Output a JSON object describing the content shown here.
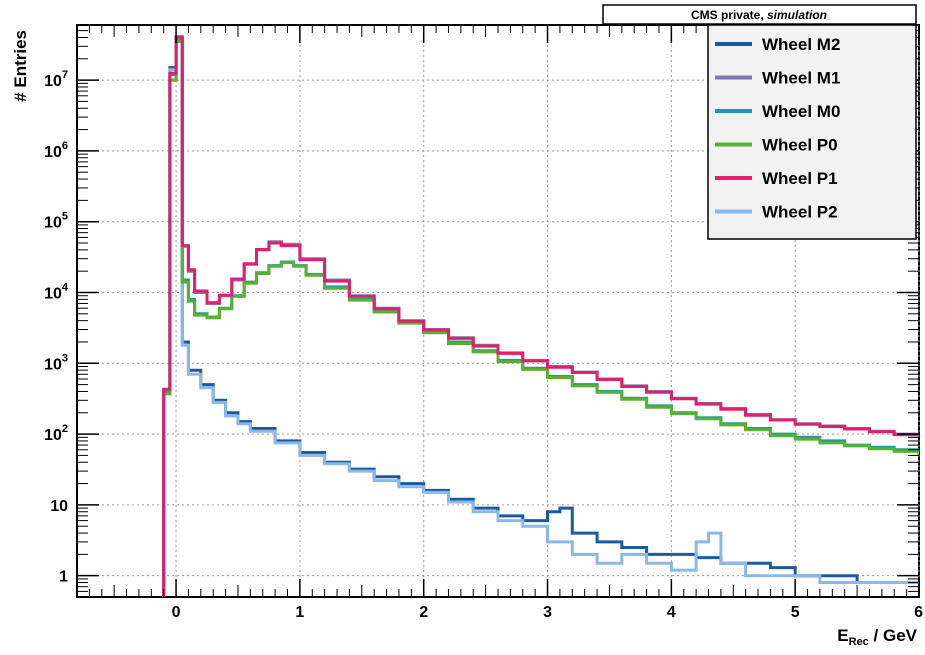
{
  "chart_data": {
    "type": "line",
    "banner": {
      "main": "CMS private,",
      "italic": "simulation"
    },
    "xlabel": {
      "main": "E",
      "sub": "Rec",
      "tail": " / GeV"
    },
    "ylabel": "# Entries",
    "xlim": [
      -0.8,
      6.0
    ],
    "ylim": [
      0.5,
      60000000
    ],
    "yscale": "log",
    "grid": true,
    "legend_position": "top-right",
    "x_ticks": [
      {
        "v": 0,
        "label": "0"
      },
      {
        "v": 1,
        "label": "1"
      },
      {
        "v": 2,
        "label": "2"
      },
      {
        "v": 3,
        "label": "3"
      },
      {
        "v": 4,
        "label": "4"
      },
      {
        "v": 5,
        "label": "5"
      },
      {
        "v": 6,
        "label": "6"
      }
    ],
    "y_ticks": [
      {
        "v": 1,
        "label": "1"
      },
      {
        "v": 10,
        "label": "10"
      },
      {
        "v": 100,
        "base": "10",
        "exp": "2"
      },
      {
        "v": 1000,
        "base": "10",
        "exp": "3"
      },
      {
        "v": 10000,
        "base": "10",
        "exp": "4"
      },
      {
        "v": 100000,
        "base": "10",
        "exp": "5"
      },
      {
        "v": 1000000,
        "base": "10",
        "exp": "6"
      },
      {
        "v": 10000000,
        "base": "10",
        "exp": "7"
      }
    ],
    "series": [
      {
        "name": "Wheel M2",
        "color": "#1a5aa0",
        "group": "outer",
        "points": [
          [
            -0.1,
            400
          ],
          [
            -0.05,
            15000000
          ],
          [
            0,
            38000000
          ],
          [
            0.05,
            2000
          ],
          [
            0.1,
            800
          ],
          [
            0.2,
            500
          ],
          [
            0.3,
            300
          ],
          [
            0.4,
            200
          ],
          [
            0.5,
            150
          ],
          [
            0.6,
            120
          ],
          [
            0.8,
            80
          ],
          [
            1.0,
            55
          ],
          [
            1.2,
            40
          ],
          [
            1.4,
            32
          ],
          [
            1.6,
            25
          ],
          [
            1.8,
            20
          ],
          [
            2.0,
            16
          ],
          [
            2.2,
            12
          ],
          [
            2.4,
            9
          ],
          [
            2.6,
            7
          ],
          [
            2.8,
            6
          ],
          [
            3.0,
            8
          ],
          [
            3.1,
            9
          ],
          [
            3.2,
            4
          ],
          [
            3.4,
            3
          ],
          [
            3.6,
            2.5
          ],
          [
            3.8,
            2
          ],
          [
            4.0,
            2
          ],
          [
            4.2,
            1.8
          ],
          [
            4.4,
            1.5
          ],
          [
            4.6,
            1.5
          ],
          [
            4.8,
            1.3
          ],
          [
            5.0,
            1
          ],
          [
            5.2,
            1
          ],
          [
            5.5,
            0.8
          ],
          [
            6.0,
            0.8
          ]
        ]
      },
      {
        "name": "Wheel M1",
        "color": "#7b76b8",
        "group": "inner",
        "points": [
          [
            -0.1,
            420
          ],
          [
            -0.05,
            12000000
          ],
          [
            0,
            40000000
          ],
          [
            0.05,
            45000
          ],
          [
            0.1,
            20000
          ],
          [
            0.15,
            10000
          ],
          [
            0.25,
            7000
          ],
          [
            0.35,
            9000
          ],
          [
            0.45,
            15000
          ],
          [
            0.55,
            25000
          ],
          [
            0.65,
            40000
          ],
          [
            0.75,
            52000
          ],
          [
            0.85,
            48000
          ],
          [
            1.0,
            30000
          ],
          [
            1.2,
            15000
          ],
          [
            1.4,
            9000
          ],
          [
            1.6,
            6000
          ],
          [
            1.8,
            4000
          ],
          [
            2.0,
            3000
          ],
          [
            2.2,
            2300
          ],
          [
            2.4,
            1800
          ],
          [
            2.6,
            1400
          ],
          [
            2.8,
            1100
          ],
          [
            3.0,
            900
          ],
          [
            3.2,
            750
          ],
          [
            3.4,
            600
          ],
          [
            3.6,
            480
          ],
          [
            3.8,
            400
          ],
          [
            4.0,
            320
          ],
          [
            4.2,
            270
          ],
          [
            4.4,
            230
          ],
          [
            4.6,
            190
          ],
          [
            4.8,
            160
          ],
          [
            5.0,
            140
          ],
          [
            5.2,
            130
          ],
          [
            5.4,
            120
          ],
          [
            5.6,
            110
          ],
          [
            5.8,
            100
          ],
          [
            6.0,
            90
          ]
        ]
      },
      {
        "name": "Wheel M0",
        "color": "#1a9aaa",
        "group": "zero",
        "points": [
          [
            -0.1,
            380
          ],
          [
            -0.05,
            10000000
          ],
          [
            0,
            36000000
          ],
          [
            0.05,
            15000
          ],
          [
            0.1,
            8000
          ],
          [
            0.15,
            5000
          ],
          [
            0.25,
            4500
          ],
          [
            0.35,
            6000
          ],
          [
            0.45,
            9000
          ],
          [
            0.55,
            14000
          ],
          [
            0.65,
            19000
          ],
          [
            0.75,
            24000
          ],
          [
            0.85,
            27000
          ],
          [
            0.95,
            24000
          ],
          [
            1.05,
            18000
          ],
          [
            1.2,
            12000
          ],
          [
            1.4,
            8000
          ],
          [
            1.6,
            5500
          ],
          [
            1.8,
            3800
          ],
          [
            2.0,
            2800
          ],
          [
            2.2,
            2000
          ],
          [
            2.4,
            1500
          ],
          [
            2.6,
            1100
          ],
          [
            2.8,
            850
          ],
          [
            3.0,
            650
          ],
          [
            3.2,
            500
          ],
          [
            3.4,
            400
          ],
          [
            3.6,
            320
          ],
          [
            3.8,
            250
          ],
          [
            4.0,
            200
          ],
          [
            4.2,
            170
          ],
          [
            4.4,
            140
          ],
          [
            4.6,
            120
          ],
          [
            4.8,
            100
          ],
          [
            5.0,
            90
          ],
          [
            5.2,
            80
          ],
          [
            5.4,
            70
          ],
          [
            5.6,
            65
          ],
          [
            5.8,
            60
          ],
          [
            6.0,
            55
          ]
        ]
      },
      {
        "name": "Wheel P0",
        "color": "#5ab030",
        "group": "zero",
        "points": [
          [
            -0.1,
            370
          ],
          [
            -0.05,
            10000000
          ],
          [
            0,
            35000000
          ],
          [
            0.05,
            14000
          ],
          [
            0.1,
            7500
          ],
          [
            0.15,
            4800
          ],
          [
            0.25,
            4400
          ],
          [
            0.35,
            5900
          ],
          [
            0.45,
            8800
          ],
          [
            0.55,
            13500
          ],
          [
            0.65,
            18500
          ],
          [
            0.75,
            23500
          ],
          [
            0.85,
            26500
          ],
          [
            0.95,
            23500
          ],
          [
            1.05,
            17500
          ],
          [
            1.2,
            11500
          ],
          [
            1.4,
            7800
          ],
          [
            1.6,
            5300
          ],
          [
            1.8,
            3700
          ],
          [
            2.0,
            2700
          ],
          [
            2.2,
            1900
          ],
          [
            2.4,
            1450
          ],
          [
            2.6,
            1050
          ],
          [
            2.8,
            820
          ],
          [
            3.0,
            630
          ],
          [
            3.2,
            480
          ],
          [
            3.4,
            390
          ],
          [
            3.6,
            310
          ],
          [
            3.8,
            240
          ],
          [
            4.0,
            195
          ],
          [
            4.2,
            165
          ],
          [
            4.4,
            135
          ],
          [
            4.6,
            115
          ],
          [
            4.8,
            95
          ],
          [
            5.0,
            85
          ],
          [
            5.2,
            75
          ],
          [
            5.4,
            68
          ],
          [
            5.6,
            62
          ],
          [
            5.8,
            57
          ],
          [
            6.0,
            50
          ]
        ]
      },
      {
        "name": "Wheel P1",
        "color": "#e0206a",
        "group": "inner",
        "points": [
          [
            -0.1,
            430
          ],
          [
            -0.05,
            12500000
          ],
          [
            0,
            41000000
          ],
          [
            0.05,
            46000
          ],
          [
            0.1,
            21000
          ],
          [
            0.15,
            10500
          ],
          [
            0.25,
            7200
          ],
          [
            0.35,
            9200
          ],
          [
            0.45,
            15500
          ],
          [
            0.55,
            25500
          ],
          [
            0.65,
            40500
          ],
          [
            0.75,
            50000
          ],
          [
            0.85,
            46000
          ],
          [
            1.0,
            29000
          ],
          [
            1.2,
            14500
          ],
          [
            1.4,
            8800
          ],
          [
            1.6,
            5900
          ],
          [
            1.8,
            3950
          ],
          [
            2.0,
            2950
          ],
          [
            2.2,
            2250
          ],
          [
            2.4,
            1750
          ],
          [
            2.6,
            1380
          ],
          [
            2.8,
            1080
          ],
          [
            3.0,
            880
          ],
          [
            3.2,
            740
          ],
          [
            3.4,
            590
          ],
          [
            3.6,
            470
          ],
          [
            3.8,
            390
          ],
          [
            4.0,
            315
          ],
          [
            4.2,
            265
          ],
          [
            4.4,
            225
          ],
          [
            4.6,
            185
          ],
          [
            4.8,
            158
          ],
          [
            5.0,
            138
          ],
          [
            5.2,
            128
          ],
          [
            5.4,
            118
          ],
          [
            5.6,
            108
          ],
          [
            5.8,
            98
          ],
          [
            6.0,
            95
          ]
        ]
      },
      {
        "name": "Wheel P2",
        "color": "#8ab8e8",
        "group": "outer",
        "points": [
          [
            -0.1,
            410
          ],
          [
            -0.05,
            14000000
          ],
          [
            0,
            36000000
          ],
          [
            0.05,
            1800
          ],
          [
            0.1,
            700
          ],
          [
            0.2,
            450
          ],
          [
            0.3,
            280
          ],
          [
            0.4,
            180
          ],
          [
            0.5,
            140
          ],
          [
            0.6,
            110
          ],
          [
            0.8,
            75
          ],
          [
            1.0,
            50
          ],
          [
            1.2,
            38
          ],
          [
            1.4,
            30
          ],
          [
            1.6,
            22
          ],
          [
            1.8,
            18
          ],
          [
            2.0,
            15
          ],
          [
            2.2,
            11
          ],
          [
            2.4,
            8
          ],
          [
            2.6,
            6
          ],
          [
            2.8,
            5
          ],
          [
            3.0,
            3
          ],
          [
            3.2,
            2
          ],
          [
            3.4,
            1.5
          ],
          [
            3.6,
            2
          ],
          [
            3.8,
            1.5
          ],
          [
            4.0,
            1.2
          ],
          [
            4.2,
            3
          ],
          [
            4.3,
            4
          ],
          [
            4.4,
            1.5
          ],
          [
            4.6,
            1
          ],
          [
            4.8,
            1
          ],
          [
            5.0,
            1
          ],
          [
            5.2,
            0.8
          ],
          [
            5.5,
            0.8
          ],
          [
            6.0,
            0.8
          ]
        ]
      }
    ]
  }
}
